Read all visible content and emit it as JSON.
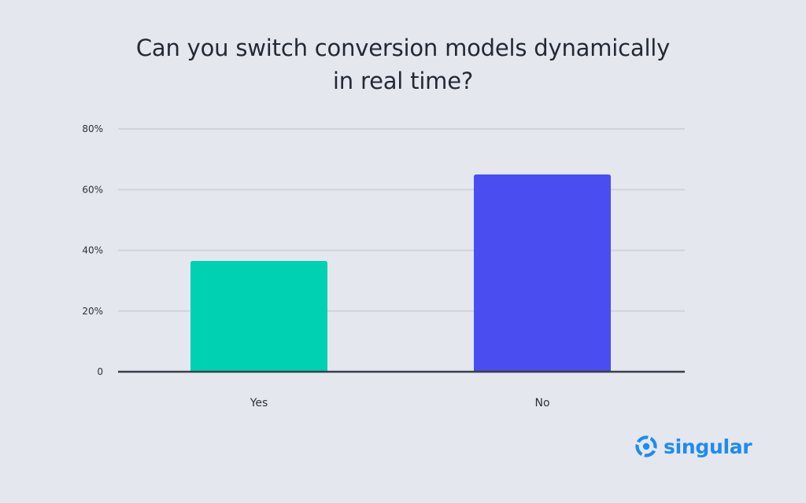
{
  "chart_data": {
    "type": "bar",
    "title_lines": [
      "Can you switch conversion models dynamically",
      "in real time?"
    ],
    "categories": [
      "Yes",
      "No"
    ],
    "values": [
      36.5,
      65
    ],
    "value_unit": "%",
    "ylim": [
      0,
      80
    ],
    "yticks": [
      0,
      20,
      40,
      60,
      80
    ],
    "ytick_labels": [
      "0",
      "20%",
      "40%",
      "60%",
      "80%"
    ],
    "grid": true,
    "legend": "none",
    "bar_colors": [
      "#00d1b2",
      "#4a4df0"
    ],
    "colors": {
      "background": "#e4e7ed",
      "gridline": "#cfd3dc",
      "axis": "#3a3f4a",
      "text": "#2b313c"
    }
  },
  "brand": {
    "name": "singular",
    "icon": "singular-logo-icon",
    "color": "#1f8bf1"
  }
}
